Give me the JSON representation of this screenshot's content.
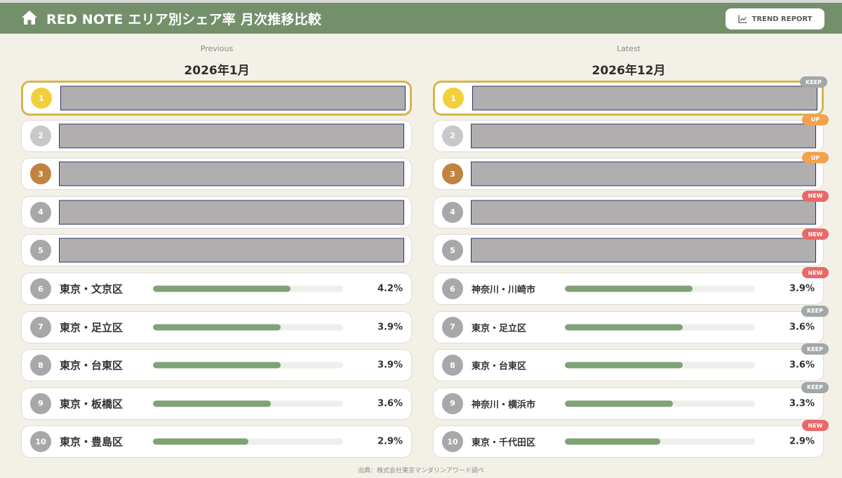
{
  "header": {
    "title": "RED NOTE エリア別シェア率 月次推移比較",
    "trend_button_label": "TREND REPORT"
  },
  "colors": {
    "header_bg": "#73906b",
    "bar": "#7fa276",
    "gold": "#f2cf3b",
    "bronze": "#c08440",
    "badge_keep": "#a2a7a9",
    "badge_up": "#f2a24d",
    "badge_new": "#ea6868"
  },
  "previous": {
    "label": "Previous",
    "title": "2026年1月",
    "rows": [
      {
        "rank": "1",
        "area": "",
        "pct": "",
        "share": null,
        "redacted": true
      },
      {
        "rank": "2",
        "area": "",
        "pct": "",
        "share": null,
        "redacted": true
      },
      {
        "rank": "3",
        "area": "",
        "pct": "",
        "share": null,
        "redacted": true
      },
      {
        "rank": "4",
        "area": "",
        "pct": "",
        "share": null,
        "redacted": true
      },
      {
        "rank": "5",
        "area": "",
        "pct": "",
        "share": null,
        "redacted": true
      },
      {
        "rank": "6",
        "area": "東京・文京区",
        "pct": "4.2%",
        "share": 4.2,
        "redacted": false
      },
      {
        "rank": "7",
        "area": "東京・足立区",
        "pct": "3.9%",
        "share": 3.9,
        "redacted": false
      },
      {
        "rank": "8",
        "area": "東京・台東区",
        "pct": "3.9%",
        "share": 3.9,
        "redacted": false
      },
      {
        "rank": "9",
        "area": "東京・板橋区",
        "pct": "3.6%",
        "share": 3.6,
        "redacted": false
      },
      {
        "rank": "10",
        "area": "東京・豊島区",
        "pct": "2.9%",
        "share": 2.9,
        "redacted": false
      }
    ]
  },
  "latest": {
    "label": "Latest",
    "title": "2026年12月",
    "rows": [
      {
        "rank": "1",
        "area": "",
        "pct": "",
        "share": null,
        "redacted": true,
        "badge": "KEEP",
        "badge_type": "keep"
      },
      {
        "rank": "2",
        "area": "",
        "pct": "",
        "share": null,
        "redacted": true,
        "badge": "UP",
        "badge_type": "up"
      },
      {
        "rank": "3",
        "area": "",
        "pct": "",
        "share": null,
        "redacted": true,
        "badge": "UP",
        "badge_type": "up"
      },
      {
        "rank": "4",
        "area": "",
        "pct": "",
        "share": null,
        "redacted": true,
        "badge": "NEW",
        "badge_type": "new"
      },
      {
        "rank": "5",
        "area": "",
        "pct": "",
        "share": null,
        "redacted": true,
        "badge": "NEW",
        "badge_type": "new"
      },
      {
        "rank": "6",
        "area": "神奈川・川崎市",
        "pct": "3.9%",
        "share": 3.9,
        "redacted": false,
        "badge": "NEW",
        "badge_type": "new"
      },
      {
        "rank": "7",
        "area": "東京・足立区",
        "pct": "3.6%",
        "share": 3.6,
        "redacted": false,
        "badge": "KEEP",
        "badge_type": "keep"
      },
      {
        "rank": "8",
        "area": "東京・台東区",
        "pct": "3.6%",
        "share": 3.6,
        "redacted": false,
        "badge": "KEEP",
        "badge_type": "keep"
      },
      {
        "rank": "9",
        "area": "神奈川・横浜市",
        "pct": "3.3%",
        "share": 3.3,
        "redacted": false,
        "badge": "KEEP",
        "badge_type": "keep"
      },
      {
        "rank": "10",
        "area": "東京・千代田区",
        "pct": "2.9%",
        "share": 2.9,
        "redacted": false,
        "badge": "NEW",
        "badge_type": "new"
      }
    ]
  },
  "bar_scale_max": 5.8,
  "footer": "出典：株式会社東京マンダリンアワード調べ"
}
